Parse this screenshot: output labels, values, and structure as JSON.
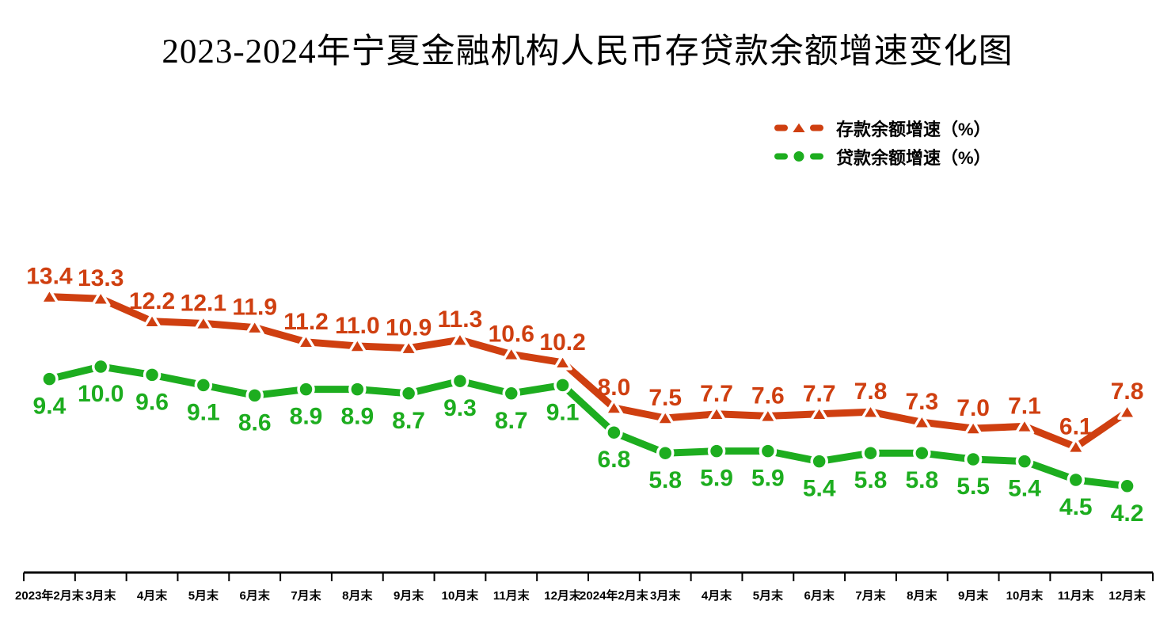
{
  "title": "2023-2024年宁夏金融机构人民币存贷款余额增速变化图",
  "colors": {
    "deposit": "#cf3f10",
    "loan": "#1dad1f",
    "axis": "#000000"
  },
  "chart_data": {
    "type": "line",
    "title": "2023-2024年宁夏金融机构人民币存贷款余额增速变化图",
    "categories": [
      "2023年2月末",
      "3月末",
      "4月末",
      "5月末",
      "6月末",
      "7月末",
      "8月末",
      "9月末",
      "10月末",
      "11月末",
      "12月末",
      "2024年2月末",
      "3月末",
      "4月末",
      "5月末",
      "6月末",
      "7月末",
      "8月末",
      "9月末",
      "10月末",
      "11月末",
      "12月末"
    ],
    "series": [
      {
        "name": "存款余额增速（%）",
        "color": "#cf3f10",
        "marker": "triangle",
        "label_position": "above",
        "values": [
          13.4,
          13.3,
          12.2,
          12.1,
          11.9,
          11.2,
          11.0,
          10.9,
          11.3,
          10.6,
          10.2,
          8.0,
          7.5,
          7.7,
          7.6,
          7.7,
          7.8,
          7.3,
          7.0,
          7.1,
          6.1,
          7.8
        ]
      },
      {
        "name": "贷款余额增速（%）",
        "color": "#1dad1f",
        "marker": "circle",
        "label_position": "below",
        "values": [
          9.4,
          10.0,
          9.6,
          9.1,
          8.6,
          8.9,
          8.9,
          8.7,
          9.3,
          8.7,
          9.1,
          6.8,
          5.8,
          5.9,
          5.9,
          5.4,
          5.8,
          5.8,
          5.5,
          5.4,
          4.5,
          4.2
        ]
      }
    ],
    "xlabel": "",
    "ylabel": "",
    "ylim": [
      0,
      15
    ],
    "grid": false,
    "y_axis_visible": false,
    "data_labels": true,
    "legend_position": "top-right"
  }
}
